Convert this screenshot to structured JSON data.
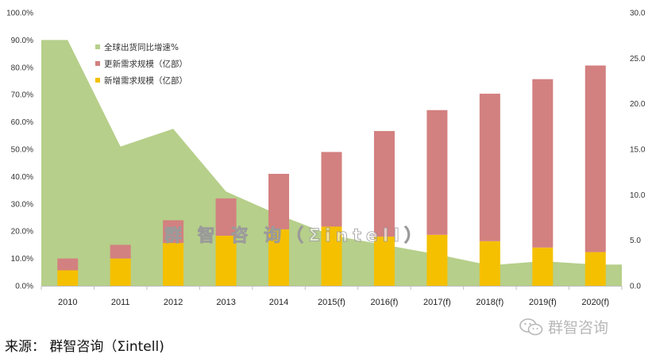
{
  "chart_data": {
    "type": "bar+area",
    "categories": [
      "2010",
      "2011",
      "2012",
      "2013",
      "2014",
      "2015(f)",
      "2016(f)",
      "2017(f)",
      "2018(f)",
      "2019(f)",
      "2020(f)"
    ],
    "series": [
      {
        "name": "全球出货同比增速%",
        "kind": "area",
        "axis": "left",
        "color": "#b6cf8a",
        "values": [
          0.9,
          0.51,
          0.575,
          0.345,
          0.26,
          0.185,
          0.15,
          0.115,
          0.075,
          0.09,
          0.078
        ]
      },
      {
        "name": "新增需求规模（亿部）",
        "kind": "stacked-bar-base",
        "axis": "right",
        "color": "#f5c000",
        "values": [
          1.7,
          3.0,
          4.7,
          5.5,
          6.2,
          6.5,
          5.4,
          5.6,
          4.9,
          4.2,
          3.7
        ]
      },
      {
        "name": "更新需求规模（亿部）",
        "kind": "stacked-bar-top",
        "axis": "right",
        "color": "#d38080",
        "values": [
          1.3,
          1.5,
          2.5,
          4.1,
          6.1,
          8.2,
          11.6,
          13.7,
          16.2,
          18.5,
          20.5
        ]
      }
    ],
    "legend": {
      "placement": "top-left",
      "entries": [
        "全球出货同比增速%",
        "更新需求规模（亿部）",
        "新增需求规模（亿部）"
      ]
    },
    "y_left": {
      "ylim": [
        0,
        1.0
      ],
      "ticks": [
        "0.0%",
        "10.0%",
        "20.0%",
        "30.0%",
        "40.0%",
        "50.0%",
        "60.0%",
        "70.0%",
        "80.0%",
        "90.0%",
        "100.0%"
      ]
    },
    "y_right": {
      "ylim": [
        0,
        30
      ],
      "ticks": [
        "0.0",
        "5.0",
        "10.0",
        "15.0",
        "20.0",
        "25.0",
        "30.0"
      ]
    },
    "watermark": "群 智 咨 询（Σintell）"
  },
  "source": {
    "text": "来源： 群智咨询（Σintell)"
  },
  "brand": {
    "text": "群智咨询"
  }
}
